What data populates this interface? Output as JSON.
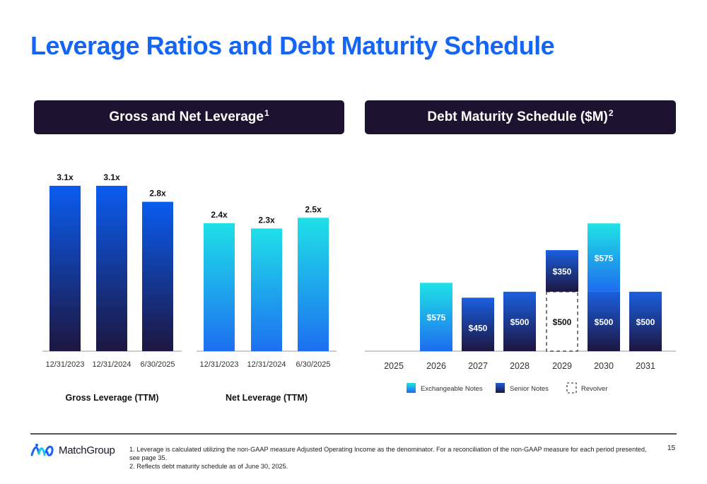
{
  "page": {
    "title": "Leverage Ratios and Debt Maturity Schedule",
    "page_number": "15",
    "logo_text": "MatchGroup",
    "footnotes": [
      "1. Leverage is calculated utilizing the non-GAAP measure Adjusted Operating Income as the denominator. For a reconciliation of the non-GAAP measure for each period presented, see page 35.",
      "2. Reflects debt maturity schedule as of June 30, 2025."
    ]
  },
  "panels": {
    "left_header": "Gross and Net Leverage",
    "left_sup": "1",
    "right_header": "Debt Maturity Schedule ($M)",
    "right_sup": "2"
  },
  "colors": {
    "title_blue": "#1565f5",
    "header_bg": "#1d1230",
    "gross_top": "#0a5cf0",
    "gross_bottom": "#1d1640",
    "net_top": "#1fe0e8",
    "net_bottom": "#1e6ff0",
    "senior_top": "#1a5fe0",
    "senior_bottom": "#1d1640",
    "exchangeable_top": "#1fe3e6",
    "exchangeable_bottom": "#1e6cef"
  },
  "chart_data": [
    {
      "type": "bar",
      "title": "Gross Leverage (TTM)",
      "categories": [
        "12/31/2023",
        "12/31/2024",
        "6/30/2025"
      ],
      "values": [
        3.1,
        3.1,
        2.8
      ],
      "labels": [
        "3.1x",
        "3.1x",
        "2.8x"
      ],
      "ylim": [
        0,
        3.4
      ]
    },
    {
      "type": "bar",
      "title": "Net Leverage (TTM)",
      "categories": [
        "12/31/2023",
        "12/31/2024",
        "6/30/2025"
      ],
      "values": [
        2.4,
        2.3,
        2.5
      ],
      "labels": [
        "2.4x",
        "2.3x",
        "2.5x"
      ],
      "ylim": [
        0,
        3.4
      ]
    },
    {
      "type": "bar",
      "stacked": true,
      "title": "Debt Maturity Schedule ($M)",
      "categories": [
        "2025",
        "2026",
        "2027",
        "2028",
        "2029",
        "2030",
        "2031"
      ],
      "series": [
        {
          "name": "Exchangeable Notes",
          "values": [
            0,
            575,
            0,
            0,
            0,
            575,
            0
          ],
          "labels": [
            "",
            "$575",
            "",
            "",
            "",
            "$575",
            ""
          ]
        },
        {
          "name": "Senior Notes",
          "values": [
            0,
            0,
            450,
            500,
            350,
            500,
            500
          ],
          "labels": [
            "",
            "",
            "$450",
            "$500",
            "$350",
            "$500",
            "$500"
          ]
        },
        {
          "name": "Revolver",
          "values": [
            0,
            0,
            0,
            0,
            500,
            0,
            0
          ],
          "labels": [
            "",
            "",
            "",
            "",
            "$500",
            "",
            ""
          ]
        }
      ],
      "legend": [
        "Exchangeable Notes",
        "Senior Notes",
        "Revolver"
      ],
      "ylim": [
        0,
        1300
      ]
    }
  ]
}
